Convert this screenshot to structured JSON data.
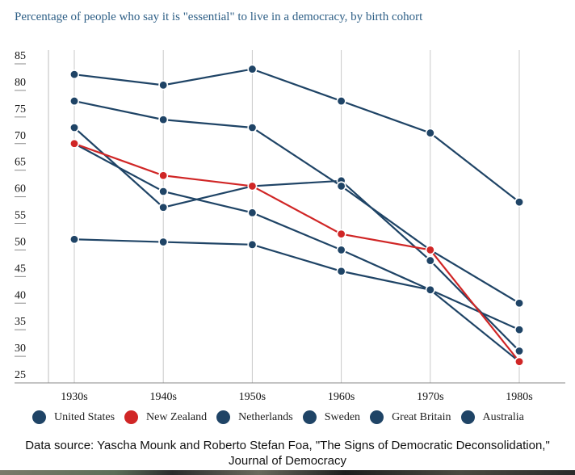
{
  "chart_data": {
    "type": "line",
    "title": "Percentage of people who say it is \"essential\" to live in a democracy, by birth cohort",
    "x": [
      "1930s",
      "1940s",
      "1950s",
      "1960s",
      "1970s",
      "1980s"
    ],
    "ylim": [
      25,
      85
    ],
    "yticks": [
      85,
      80,
      75,
      70,
      65,
      60,
      55,
      50,
      45,
      40,
      35,
      30,
      25
    ],
    "grid": "vertical",
    "legend_position": "bottom",
    "series": [
      {
        "name": "United States",
        "color": "#1f4466",
        "values": [
          73,
          58,
          62,
          63,
          48,
          31
        ]
      },
      {
        "name": "New Zealand",
        "color": "#d02626",
        "values": [
          70,
          64,
          62,
          53,
          50,
          29
        ]
      },
      {
        "name": "Netherlands",
        "color": "#1f4466",
        "values": [
          83,
          81,
          84,
          78,
          72,
          59
        ]
      },
      {
        "name": "Sweden",
        "color": "#1f4466",
        "values": [
          78,
          74.5,
          73,
          62,
          50,
          40
        ]
      },
      {
        "name": "Great Britain",
        "color": "#1f4466",
        "values": [
          70,
          61,
          57,
          50,
          42.5,
          35
        ]
      },
      {
        "name": "Australia",
        "color": "#1f4466",
        "values": [
          52,
          51.5,
          51,
          46,
          42.5,
          29
        ]
      }
    ]
  },
  "footer": {
    "source_line1": "Data source: Yascha Mounk and Roberto Stefan Foa, \"The Signs of Democratic Deconsolidation,\"",
    "source_line2": "Journal of Democracy"
  }
}
